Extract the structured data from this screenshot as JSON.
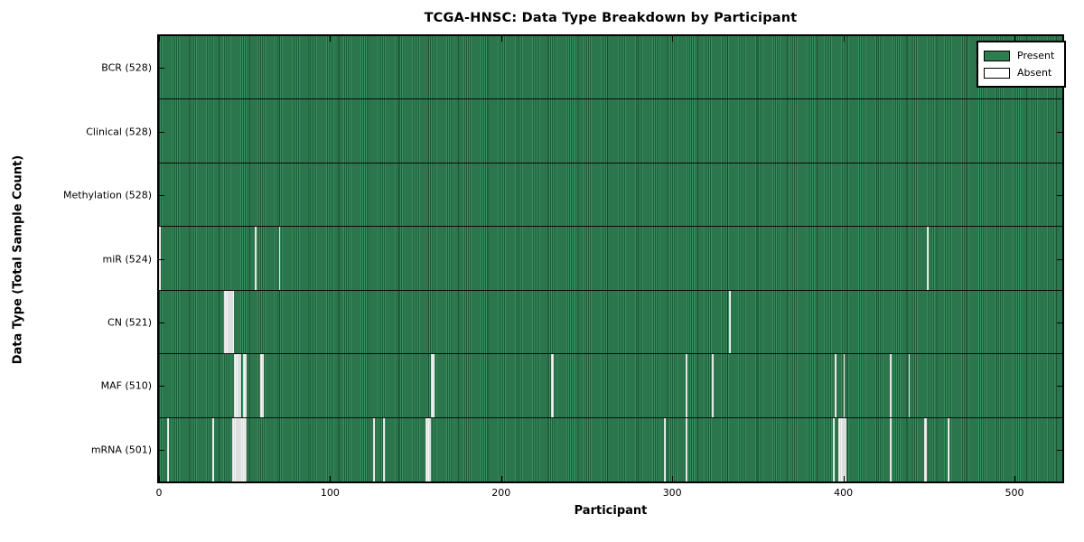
{
  "title": "TCGA-HNSC: Data Type Breakdown by Participant",
  "xlabel": "Participant",
  "ylabel": "Data Type (Total Sample Count)",
  "legend": {
    "present_label": "Present",
    "absent_label": "Absent"
  },
  "colors": {
    "present": "#2e7d4f",
    "absent": "#ffffff",
    "frame": "#000000"
  },
  "chart_data": {
    "type": "heatmap",
    "title": "TCGA-HNSC: Data Type Breakdown by Participant",
    "xlabel": "Participant",
    "ylabel": "Data Type (Total Sample Count)",
    "xlim": [
      0,
      528
    ],
    "x_ticks": [
      0,
      100,
      200,
      300,
      400,
      500
    ],
    "grid": false,
    "legend_position": "upper right",
    "legend_entries": [
      "Present",
      "Absent"
    ],
    "total_participants": 528,
    "rows": [
      {
        "name": "BCR",
        "label": "BCR (528)",
        "present_count": 528,
        "absent_count": 0,
        "absent_participants": []
      },
      {
        "name": "Clinical",
        "label": "Clinical (528)",
        "present_count": 528,
        "absent_count": 0,
        "absent_participants": []
      },
      {
        "name": "Methylation",
        "label": "Methylation (528)",
        "present_count": 528,
        "absent_count": 0,
        "absent_participants": []
      },
      {
        "name": "miR",
        "label": "miR (524)",
        "present_count": 524,
        "absent_count": 4,
        "absent_participants": [
          0,
          56,
          70,
          449
        ]
      },
      {
        "name": "CN",
        "label": "CN (521)",
        "present_count": 521,
        "absent_count": 7,
        "absent_participants": [
          38,
          39,
          40,
          41,
          42,
          43,
          333
        ]
      },
      {
        "name": "MAF",
        "label": "MAF (510)",
        "present_count": 510,
        "absent_count": 18,
        "absent_participants": [
          44,
          45,
          46,
          47,
          49,
          50,
          59,
          60,
          159,
          160,
          229,
          230,
          308,
          323,
          395,
          400,
          427,
          438
        ]
      },
      {
        "name": "mRNA",
        "label": "mRNA (501)",
        "present_count": 501,
        "absent_count": 27,
        "absent_participants": [
          5,
          31,
          43,
          44,
          45,
          46,
          47,
          48,
          49,
          50,
          125,
          131,
          156,
          157,
          158,
          295,
          308,
          394,
          397,
          398,
          399,
          400,
          401,
          427,
          447,
          448,
          461
        ]
      }
    ]
  }
}
